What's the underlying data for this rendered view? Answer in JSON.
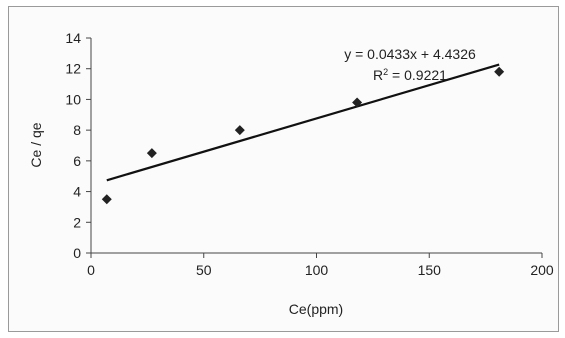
{
  "chart_data": {
    "type": "scatter",
    "title": "",
    "xlabel": "Ce(ppm)",
    "ylabel": "Ce / qe",
    "xlim": [
      0,
      200
    ],
    "ylim": [
      0,
      14
    ],
    "x_ticks": [
      0,
      50,
      100,
      150,
      200
    ],
    "y_ticks": [
      0,
      2,
      4,
      6,
      8,
      10,
      12,
      14
    ],
    "x_tick_labels": [
      "0",
      "50",
      "100",
      "150",
      "200"
    ],
    "y_tick_labels": [
      "0",
      "2",
      "4",
      "6",
      "8",
      "10",
      "12",
      "14"
    ],
    "grid": false,
    "legend": "none",
    "points": [
      {
        "x": 7,
        "y": 3.5
      },
      {
        "x": 27,
        "y": 6.5
      },
      {
        "x": 66,
        "y": 8.0
      },
      {
        "x": 118,
        "y": 9.8
      },
      {
        "x": 181,
        "y": 11.8
      }
    ],
    "trendline": {
      "type": "linear",
      "slope": 0.0433,
      "intercept": 4.4326,
      "x_range": [
        7,
        181
      ],
      "equation": "y = 0.0433x + 4.4326",
      "r2_prefix": "R",
      "r2_sup": "2",
      "r2_value": " = 0.9221"
    },
    "colors": {
      "marker": "#222222",
      "line": "#111111",
      "axis": "#444444"
    }
  }
}
